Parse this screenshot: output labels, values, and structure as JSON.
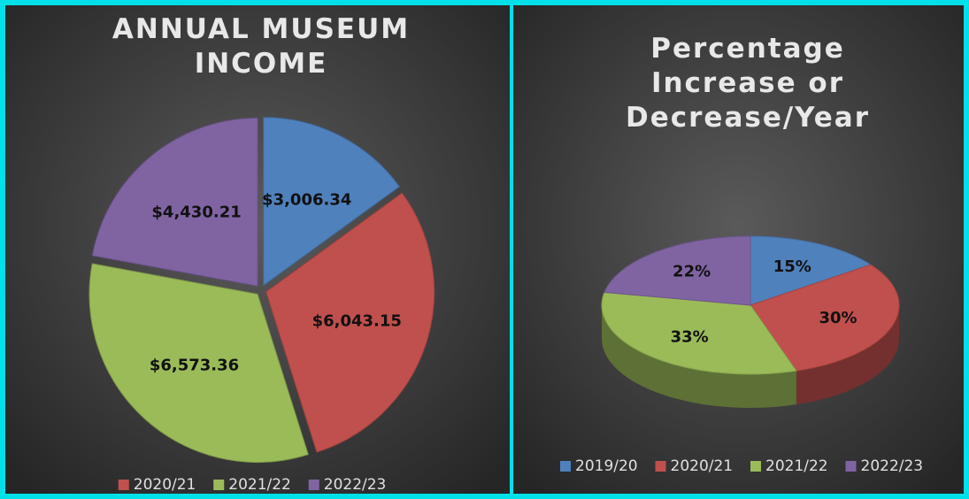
{
  "chart_data": [
    {
      "type": "pie",
      "title": "ANNUAL MUSEUM INCOME",
      "categories": [
        null,
        "2020/21",
        "2021/22",
        "2022/23"
      ],
      "values": [
        3006.34,
        6043.15,
        6573.36,
        4430.21
      ],
      "value_labels": [
        "$3,006.34",
        "$6,043.15",
        "$6,573.36",
        "$4,430.21"
      ],
      "colors": [
        "#4f81bd",
        "#c0504d",
        "#9bbb59",
        "#8064a2"
      ],
      "legend": "bottom"
    },
    {
      "type": "pie3d",
      "title": "Percentage Increase or Decrease/Year",
      "categories": [
        "2019/20",
        "2020/21",
        "2021/22",
        "2022/23"
      ],
      "values": [
        15,
        30,
        33,
        22
      ],
      "value_labels": [
        "15%",
        "30%",
        "33%",
        "22%"
      ],
      "colors": [
        "#4f81bd",
        "#c0504d",
        "#9bbb59",
        "#8064a2"
      ],
      "legend": "bottom"
    }
  ]
}
